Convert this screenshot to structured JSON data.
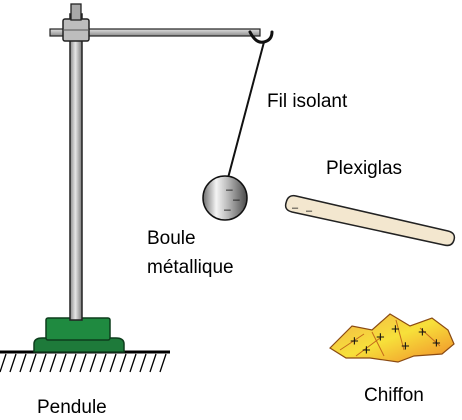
{
  "labels": {
    "fil_isolant": "Fil isolant",
    "plexiglas": "Plexiglas",
    "boule_line1": "Boule",
    "boule_line2": "métallique",
    "chiffon": "Chiffon",
    "pendule": "Pendule"
  },
  "symbols": {
    "ball_charge": "–",
    "rod_charge": "–",
    "cloth_charge": "+"
  },
  "colors": {
    "stand_metal": "#9a9a9a",
    "base_green": "#1e7a3a",
    "rod_fill": "#f2e6cf",
    "cloth_orange": "#f0a23a",
    "cloth_yellow": "#f7e53a"
  }
}
